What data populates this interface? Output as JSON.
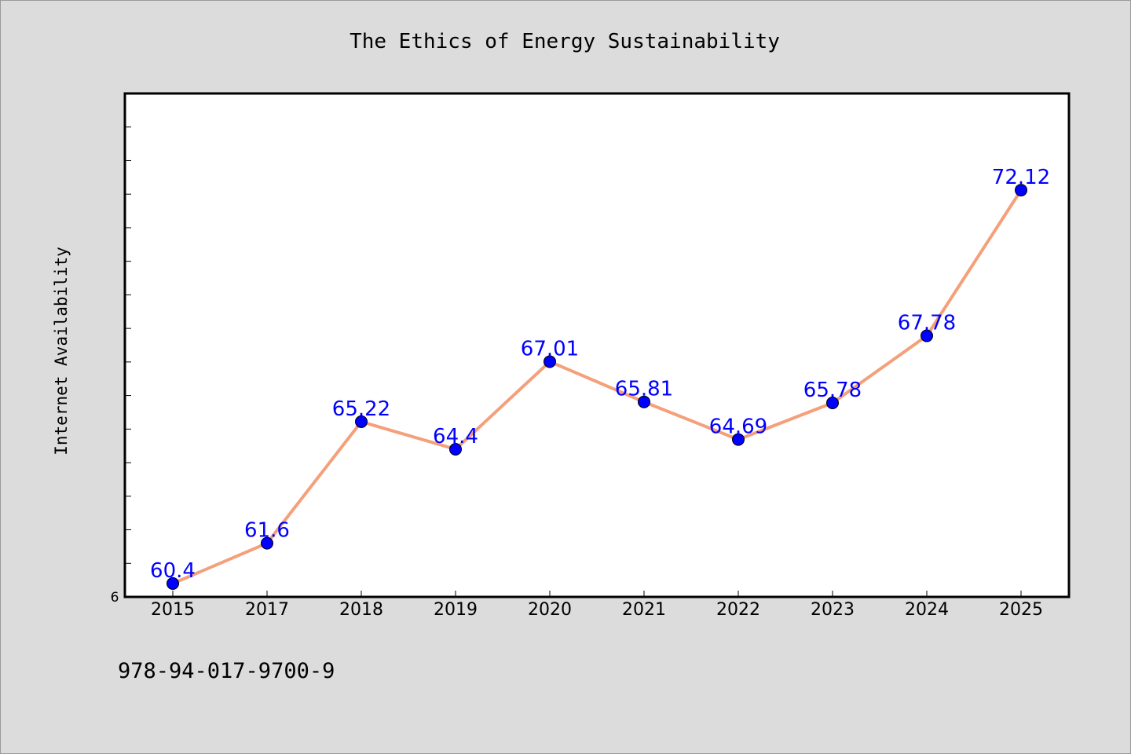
{
  "chart_data": {
    "type": "line",
    "title": "The Ethics of Energy Sustainability",
    "xlabel": "",
    "ylabel": "Internet Availability",
    "categories": [
      "2015",
      "2017",
      "2018",
      "2019",
      "2020",
      "2021",
      "2022",
      "2023",
      "2024",
      "2025"
    ],
    "series": [
      {
        "values": [
          60.4,
          61.6,
          65.22,
          64.4,
          67.01,
          65.81,
          64.69,
          65.78,
          67.78,
          72.12
        ],
        "data_labels": [
          "60.4",
          "61.6",
          "65.22",
          "64.4",
          "67.01",
          "65.81",
          "64.69",
          "65.78",
          "67.78",
          "72.12"
        ],
        "line_color": "#f4a07a",
        "marker_color": "#0000ff"
      }
    ],
    "ylim": [
      60.0,
      75.0
    ],
    "y_tick_labels": [
      "6"
    ],
    "y_minor_tick_step": 1,
    "grid": false,
    "legend": "none"
  },
  "footer": {
    "isbn": "978-94-017-9700-9"
  },
  "colors": {
    "background": "#dcdcdc",
    "plot_background": "#ffffff",
    "data_label": "#0000ff"
  }
}
